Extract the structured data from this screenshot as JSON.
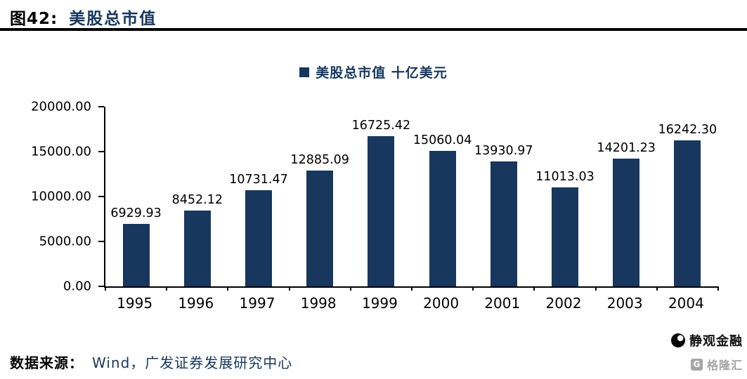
{
  "header": {
    "figure_label": "图42:",
    "title": "美股总市值"
  },
  "chart_data": {
    "type": "bar",
    "title": "美股总市值",
    "legend": [
      "美股总市值 十亿美元"
    ],
    "legend_position": "top",
    "categories": [
      "1995",
      "1996",
      "1997",
      "1998",
      "1999",
      "2000",
      "2001",
      "2002",
      "2003",
      "2004"
    ],
    "values": [
      6929.93,
      8452.12,
      10731.47,
      12885.09,
      16725.42,
      15060.04,
      13930.97,
      11013.03,
      14201.23,
      16242.3
    ],
    "value_labels": [
      "6929.93",
      "8452.12",
      "10731.47",
      "12885.09",
      "16725.42",
      "15060.04",
      "13930.97",
      "11013.03",
      "14201.23",
      "16242.30"
    ],
    "xlabel": "",
    "ylabel": "",
    "ylim": [
      0,
      20000
    ],
    "yticks": [
      0,
      5000,
      10000,
      15000,
      20000
    ],
    "ytick_labels": [
      "20000.00",
      "15000.00",
      "10000.00",
      "5000.00",
      "0.00"
    ],
    "grid": false,
    "bar_color": "#17375E"
  },
  "footer": {
    "source_label": "数据来源：",
    "source_text": "Wind，广发证券发展研究中心"
  },
  "watermark": {
    "account_name": "静观金融",
    "platform_name": "格隆汇",
    "platform_icon_letter": "G"
  }
}
